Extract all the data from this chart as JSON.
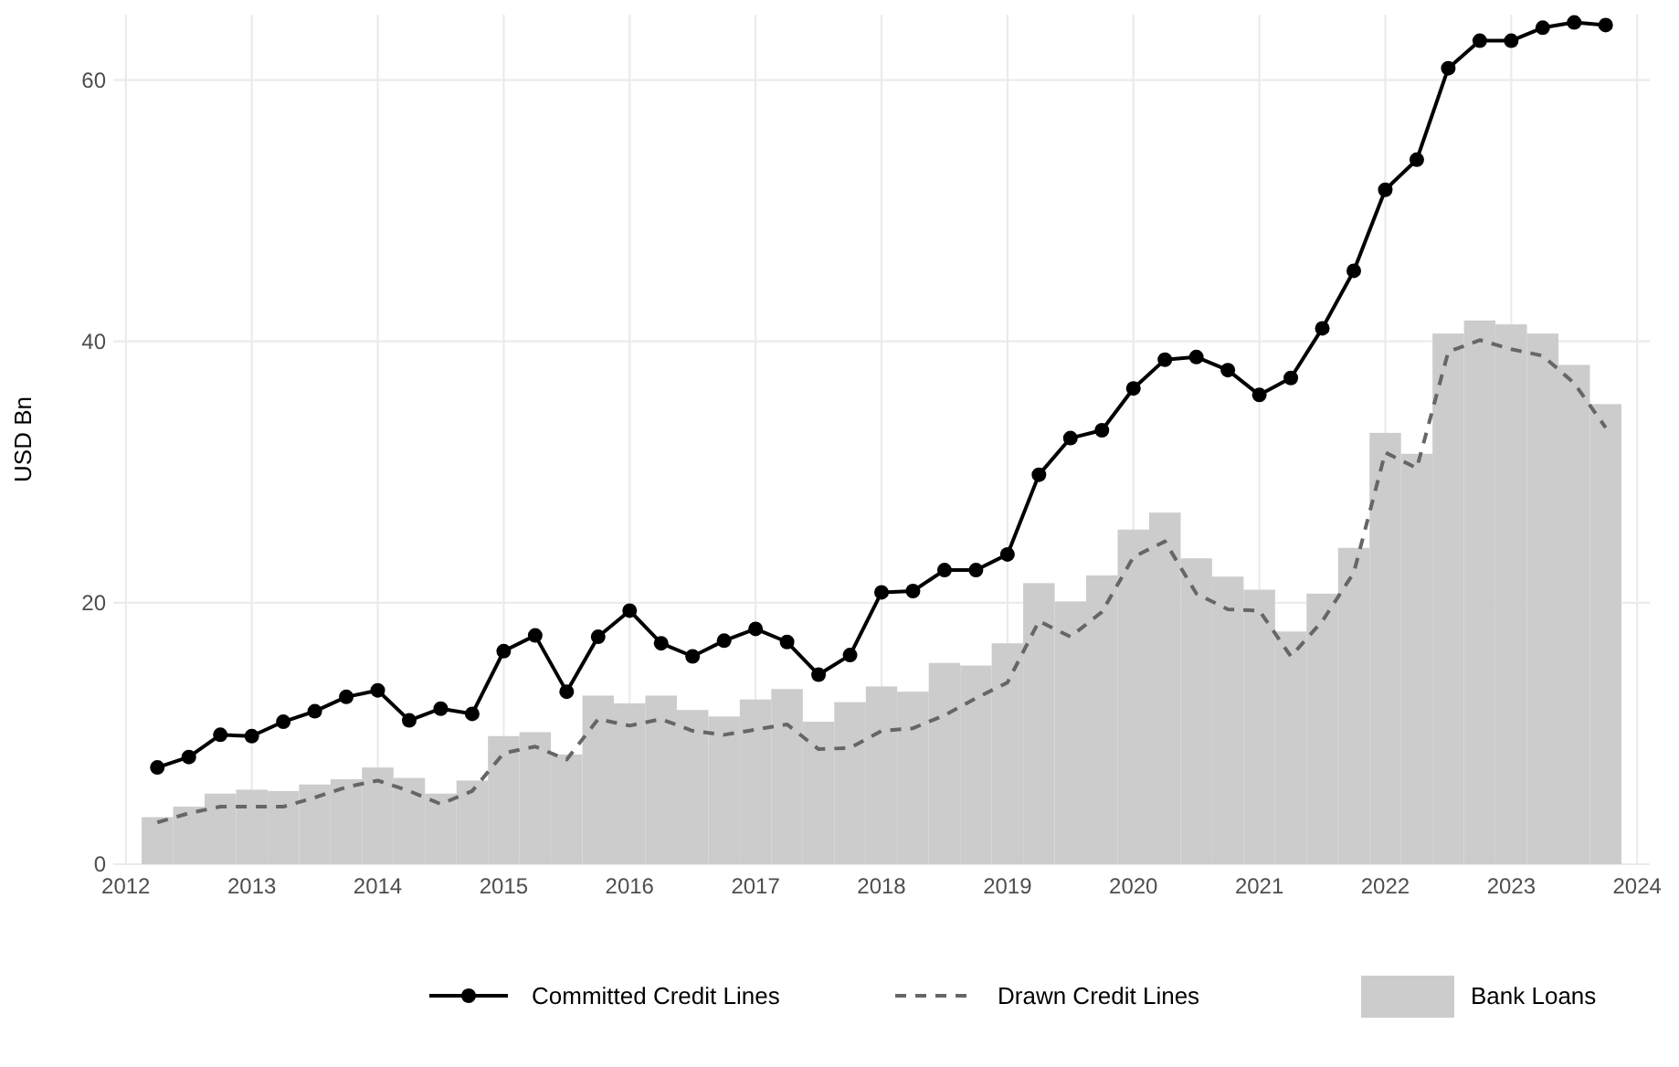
{
  "chart_data": {
    "type": "line",
    "ylabel": "USD Bn",
    "x": [
      2012.25,
      2012.5,
      2012.75,
      2013,
      2013.25,
      2013.5,
      2013.75,
      2014,
      2014.25,
      2014.5,
      2014.75,
      2015,
      2015.25,
      2015.5,
      2015.75,
      2016,
      2016.25,
      2016.5,
      2016.75,
      2017,
      2017.25,
      2017.5,
      2017.75,
      2018,
      2018.25,
      2018.5,
      2018.75,
      2019,
      2019.25,
      2019.5,
      2019.75,
      2020,
      2020.25,
      2020.5,
      2020.75,
      2021,
      2021.25,
      2021.5,
      2021.75,
      2022,
      2022.25,
      2022.5,
      2022.75,
      2023,
      2023.25,
      2023.5,
      2023.75
    ],
    "series": [
      {
        "name": "Bank Loans",
        "type": "bar",
        "color": "#cccccc",
        "values": [
          3.6,
          4.4,
          5.4,
          5.7,
          5.6,
          6.1,
          6.5,
          7.4,
          6.6,
          5.4,
          6.4,
          9.8,
          10.1,
          8.4,
          12.9,
          12.3,
          12.9,
          11.8,
          11.3,
          12.6,
          13.4,
          10.9,
          12.4,
          13.6,
          13.2,
          15.4,
          15.2,
          16.9,
          21.5,
          20.1,
          22.1,
          25.6,
          26.9,
          23.4,
          22.0,
          21.0,
          17.8,
          20.7,
          24.2,
          33.0,
          31.4,
          40.6,
          41.6,
          41.3,
          40.6,
          38.2,
          35.2
        ]
      },
      {
        "name": "Committed Credit Lines",
        "color": "#000000",
        "marker": "circle",
        "line_style": "solid",
        "values": [
          7.4,
          8.2,
          9.9,
          9.8,
          10.9,
          11.7,
          12.8,
          13.3,
          11.0,
          11.9,
          11.5,
          16.3,
          17.5,
          13.2,
          17.4,
          19.4,
          16.9,
          15.9,
          17.1,
          18.0,
          17.0,
          14.5,
          16.0,
          20.8,
          20.9,
          22.5,
          22.5,
          23.7,
          29.8,
          32.6,
          33.2,
          36.4,
          38.6,
          38.8,
          37.8,
          35.9,
          37.2,
          41.0,
          45.4,
          51.6,
          53.9,
          60.9,
          63.0,
          63.0,
          64.0,
          64.4,
          64.2
        ]
      },
      {
        "name": "Drawn Credit Lines",
        "color": "#666666",
        "marker": "none",
        "line_style": "dashed",
        "values": [
          3.2,
          3.9,
          4.4,
          4.4,
          4.4,
          5.1,
          5.9,
          6.4,
          5.6,
          4.6,
          5.6,
          8.5,
          9.0,
          8.0,
          11.1,
          10.6,
          11.1,
          10.2,
          9.9,
          10.3,
          10.7,
          8.8,
          8.9,
          10.2,
          10.4,
          11.4,
          12.7,
          13.9,
          18.6,
          17.4,
          19.3,
          23.5,
          24.7,
          20.7,
          19.5,
          19.4,
          15.9,
          18.6,
          22.3,
          31.5,
          30.3,
          39.2,
          40.1,
          39.4,
          38.9,
          36.8,
          33.4
        ]
      }
    ],
    "xlim": [
      2011.9,
      2024.1
    ],
    "xticks": [
      2012,
      2013,
      2014,
      2015,
      2016,
      2017,
      2018,
      2019,
      2020,
      2021,
      2022,
      2023,
      2024
    ],
    "ylim": [
      0,
      65
    ],
    "yticks": [
      0,
      20,
      40,
      60
    ],
    "grid": true,
    "legend": "bottom"
  }
}
